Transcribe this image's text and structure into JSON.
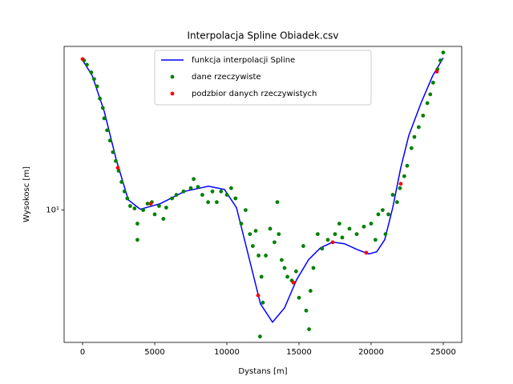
{
  "chart_data": {
    "type": "line",
    "title": "Interpolacja Spline Obiadek.csv",
    "x_label": "Dystans [m]",
    "y_label": "Wysokosc [m]",
    "yscale": "log",
    "legend": "upper center",
    "grid": false,
    "xlim": [
      -1280,
      26280
    ],
    "ylim": [
      2.05,
      71
    ],
    "xticks": [
      0,
      5000,
      10000,
      15000,
      20000,
      25000
    ],
    "yticks": [
      {
        "value": 10,
        "label": "10¹"
      }
    ],
    "series": [
      {
        "name": "funkcja interpolacji Spline",
        "type": "line",
        "color": "#0000ff",
        "x": [
          0,
          667,
          1500,
          2333,
          3167,
          4000,
          5389,
          7056,
          8722,
          9833,
          10667,
          11500,
          12333,
          13167,
          14000,
          14833,
          15667,
          16500,
          17333,
          18167,
          19000,
          19833,
          20389,
          20944,
          21500,
          22056,
          22611,
          23444,
          24278,
          25000
        ],
        "values": [
          60.1,
          50.1,
          32.6,
          18.3,
          11.3,
          10.1,
          10.8,
          12.5,
          13.3,
          12.8,
          10.3,
          5.79,
          3.25,
          2.61,
          3.1,
          4.34,
          5.52,
          6.37,
          6.81,
          6.68,
          6.25,
          5.91,
          6.07,
          7.01,
          10.3,
          16.6,
          24.4,
          35.8,
          50.1,
          61.9
        ]
      },
      {
        "name": "dane rzeczywiste",
        "type": "scatter",
        "color": "#008000",
        "x": [
          100,
          300,
          600,
          800,
          1000,
          1200,
          1400,
          1500,
          1700,
          1900,
          2100,
          2300,
          2500,
          2700,
          2900,
          3100,
          3300,
          3600,
          3800,
          3800,
          4200,
          4500,
          4800,
          5000,
          5300,
          5600,
          5800,
          6200,
          6500,
          7000,
          7500,
          7700,
          8000,
          8300,
          8700,
          9000,
          9300,
          9600,
          10000,
          10300,
          10600,
          11000,
          11300,
          11600,
          11800,
          12000,
          12200,
          12400,
          12300,
          12500,
          12700,
          13000,
          13300,
          13500,
          13600,
          13800,
          14000,
          14200,
          14500,
          14800,
          15000,
          15300,
          15500,
          15700,
          15800,
          16000,
          16300,
          16600,
          17000,
          17500,
          17800,
          18000,
          18500,
          19000,
          19500,
          20000,
          20300,
          20500,
          20800,
          21000,
          21200,
          21500,
          21800,
          22000,
          22300,
          22500,
          22800,
          23000,
          23300,
          23600,
          23900,
          24100,
          24300,
          24600,
          24800,
          25000
        ],
        "values": [
          60,
          57,
          52,
          48,
          44,
          38,
          34,
          30,
          26,
          23,
          20,
          18,
          16,
          14,
          12.5,
          11.5,
          10.5,
          10.2,
          8.5,
          7,
          10,
          10.8,
          11,
          9.5,
          10.5,
          9,
          10.3,
          11.5,
          12,
          12.5,
          13,
          14.5,
          13.2,
          12,
          11,
          12.5,
          11,
          12.5,
          12,
          13,
          11.5,
          8.5,
          10,
          7.5,
          6.5,
          7.8,
          5.8,
          4.5,
          2.2,
          3.3,
          5.8,
          8,
          6.8,
          11,
          7.5,
          5.5,
          5,
          4.5,
          4.3,
          4.8,
          3.5,
          6.5,
          3,
          2.4,
          3.8,
          5,
          7.5,
          6.3,
          7,
          7.5,
          8.5,
          7.2,
          8,
          7.5,
          8.2,
          8.5,
          7,
          9.5,
          10,
          7.5,
          9.5,
          12,
          11,
          13,
          15,
          17,
          21,
          24,
          27,
          31,
          36,
          40,
          46,
          54,
          60,
          66
        ]
      },
      {
        "name": "podzbior danych rzeczywistych",
        "type": "scatter",
        "color": "#ff0000",
        "x": [
          0,
          2444,
          4722,
          12167,
          14611,
          17333,
          19667,
          22056,
          24556
        ],
        "values": [
          61,
          16.6,
          10.8,
          3.6,
          4.2,
          6.8,
          6.0,
          13.7,
          52.5
        ]
      }
    ]
  }
}
